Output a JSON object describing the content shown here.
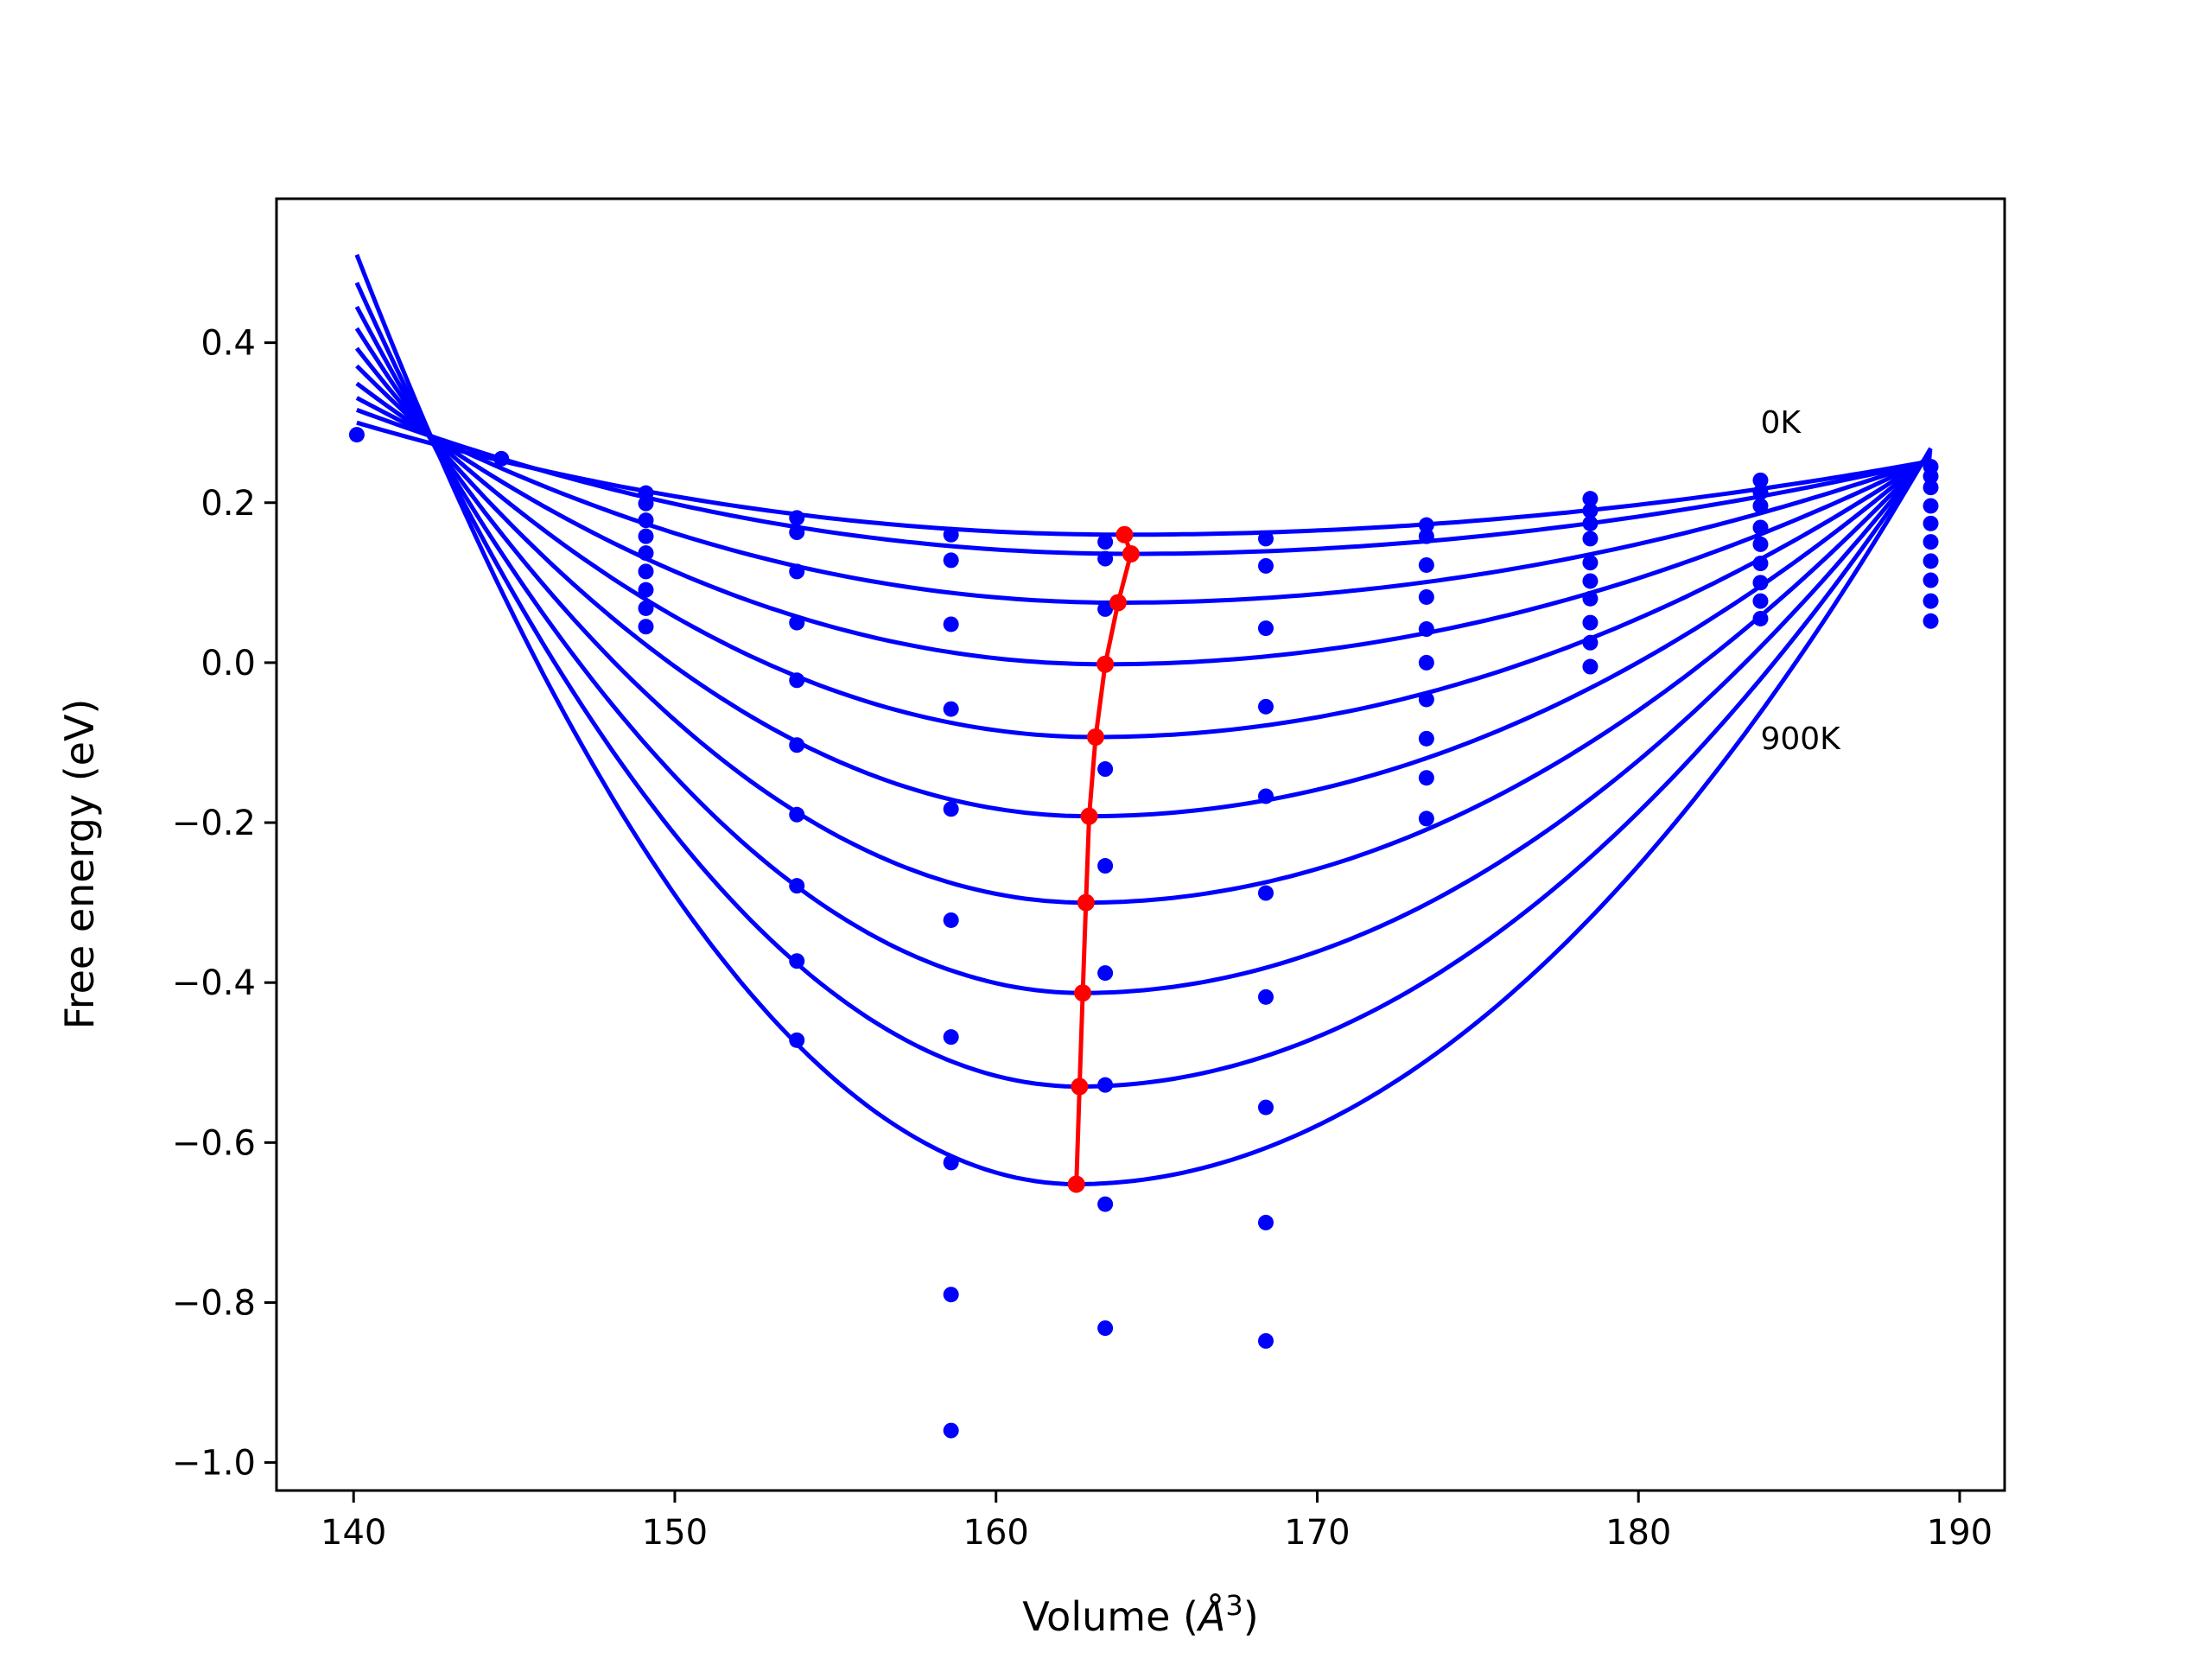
{
  "chart_data": {
    "type": "line",
    "xlabel": "Volume (",
    "xlabel_unit": "Å",
    "xlabel_exp": "3",
    "xlabel_close": ")",
    "ylabel": "Free energy (eV)",
    "xlim": [
      137.6,
      191.4
    ],
    "ylim": [
      -1.035,
      0.58
    ],
    "xticks": [
      140,
      150,
      160,
      170,
      180,
      190
    ],
    "xtick_labels": [
      "140",
      "150",
      "160",
      "170",
      "180",
      "190"
    ],
    "yticks": [
      0.4,
      0.2,
      0.0,
      -0.2,
      -0.4,
      -0.6,
      -0.8,
      -1.0
    ],
    "ytick_labels": [
      "0.4",
      "0.2",
      "0.0",
      "−0.2",
      "−0.4",
      "−0.6",
      "−0.8",
      "−1.0"
    ],
    "annotations": [
      {
        "text": "0K",
        "x": 183.8,
        "y": 0.3
      },
      {
        "text": "900K",
        "x": 183.8,
        "y": -0.095
      }
    ],
    "colors": {
      "fit": "#0000ff",
      "points": "#0000ff",
      "minimum": "#ff0000"
    },
    "fit_curves": {
      "x_start": 140.1,
      "x_end": 189.1,
      "min_volume": [
        164.0,
        164.2,
        163.8,
        163.4,
        163.1,
        162.9,
        162.8,
        162.7,
        162.6,
        162.5
      ],
      "min_energy": [
        0.16,
        0.136,
        0.075,
        -0.002,
        -0.093,
        -0.192,
        -0.3,
        -0.413,
        -0.53,
        -0.652
      ],
      "left_energy": [
        0.3,
        0.316,
        0.331,
        0.349,
        0.371,
        0.393,
        0.418,
        0.445,
        0.475,
        0.51
      ],
      "right_energy": [
        0.252,
        0.252,
        0.254,
        0.256,
        0.258,
        0.26,
        0.262,
        0.264,
        0.266,
        0.268
      ]
    },
    "data_volumes": [
      140.1,
      144.6,
      149.1,
      153.8,
      158.6,
      163.4,
      168.4,
      173.4,
      178.5,
      183.8,
      189.1
    ],
    "data_points": [
      [
        0.285
      ],
      [
        0.255
      ],
      [
        0.212,
        0.199,
        0.178,
        0.158,
        0.137,
        0.114,
        0.091,
        0.068,
        0.045
      ],
      [
        0.181,
        0.163,
        0.114,
        0.05,
        -0.022,
        -0.103,
        -0.19,
        -0.279,
        -0.373,
        -0.472
      ],
      [
        0.16,
        0.128,
        0.048,
        -0.058,
        -0.183,
        -0.322,
        -0.468,
        -0.625,
        -0.79,
        -0.96
      ],
      [
        0.151,
        0.13,
        0.067,
        -0.133,
        -0.254,
        -0.388,
        -0.528,
        -0.677,
        -0.832
      ],
      [
        0.155,
        0.121,
        0.043,
        -0.055,
        -0.167,
        -0.288,
        -0.418,
        -0.556,
        -0.7,
        -0.848
      ],
      [
        0.172,
        0.158,
        0.122,
        0.082,
        0.042,
        0.0,
        -0.046,
        -0.095,
        -0.144,
        -0.195
      ],
      [
        0.205,
        0.19,
        0.174,
        0.155,
        0.125,
        0.102,
        0.08,
        0.05,
        0.025,
        -0.005
      ],
      [
        0.228,
        0.213,
        0.196,
        0.169,
        0.148,
        0.124,
        0.1,
        0.077,
        0.055
      ],
      [
        0.245,
        0.233,
        0.219,
        0.196,
        0.174,
        0.151,
        0.127,
        0.103,
        0.077,
        0.052
      ]
    ],
    "minimum_line": {
      "x": [
        164.0,
        164.2,
        163.8,
        163.4,
        163.1,
        162.9,
        162.8,
        162.7,
        162.6,
        162.5
      ],
      "y": [
        0.16,
        0.136,
        0.075,
        -0.002,
        -0.093,
        -0.192,
        -0.3,
        -0.413,
        -0.53,
        -0.652
      ]
    }
  }
}
